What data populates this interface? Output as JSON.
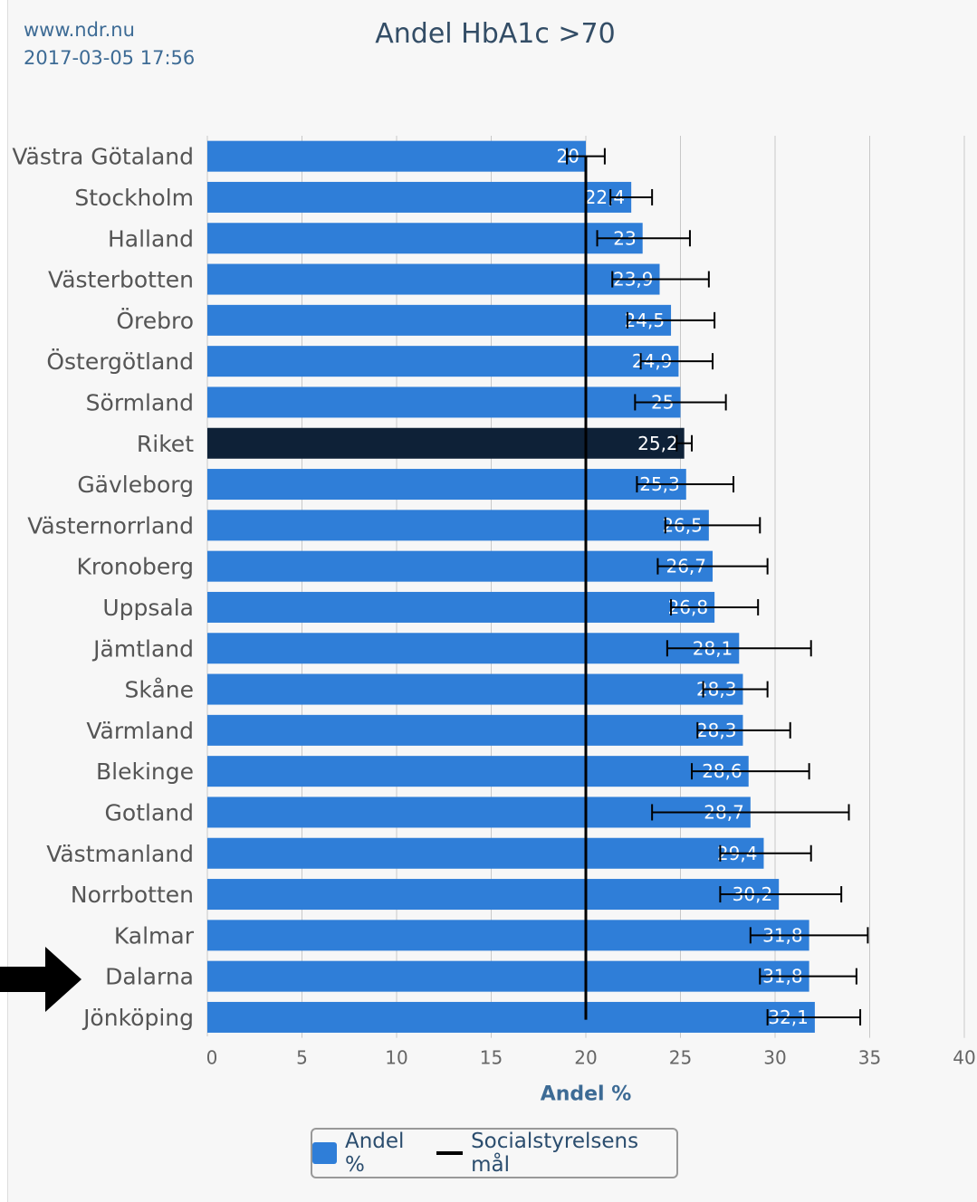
{
  "header": {
    "site": "www.ndr.nu",
    "datetime": "2017-03-05 17:56"
  },
  "colors": {
    "bar": "#2f7ed8",
    "highlight_bar": "#0e2137",
    "target_line": "#000000",
    "grid": "#c8c8c8"
  },
  "legend": {
    "items": [
      {
        "label": "Andel %",
        "icon": "blue-box"
      },
      {
        "label": "Socialstyrelsens mål",
        "icon": "black-line"
      }
    ]
  },
  "annotation": {
    "icon": "arrow-right-icon",
    "points_to": "Dalarna"
  },
  "chart_data": {
    "type": "bar",
    "orientation": "horizontal",
    "title": "Andel HbA1c >70",
    "xlabel": "Andel %",
    "ylabel": "",
    "xlim": [
      0,
      40
    ],
    "xticks": [
      "0",
      "5",
      "10",
      "15",
      "20",
      "25",
      "30",
      "35",
      "40"
    ],
    "grid": true,
    "legend_position": "bottom",
    "target": {
      "name": "Socialstyrelsens mål",
      "value": 20
    },
    "highlight": "Riket",
    "categories": [
      "Västra Götaland",
      "Stockholm",
      "Halland",
      "Västerbotten",
      "Örebro",
      "Östergötland",
      "Sörmland",
      "Riket",
      "Gävleborg",
      "Västernorrland",
      "Kronoberg",
      "Uppsala",
      "Jämtland",
      "Skåne",
      "Värmland",
      "Blekinge",
      "Gotland",
      "Västmanland",
      "Norrbotten",
      "Kalmar",
      "Dalarna",
      "Jönköping"
    ],
    "series": [
      {
        "name": "Andel %",
        "values": [
          20,
          22.4,
          23,
          23.9,
          24.5,
          24.9,
          25,
          25.2,
          25.3,
          26.5,
          26.7,
          26.8,
          28.1,
          28.3,
          28.3,
          28.6,
          28.7,
          29.4,
          30.2,
          31.8,
          31.8,
          32.1
        ],
        "labels": [
          "20",
          "22,4",
          "23",
          "23,9",
          "24,5",
          "24,9",
          "25",
          "25,2",
          "25,3",
          "26,5",
          "26,7",
          "26,8",
          "28,1",
          "28,3",
          "28,3",
          "28,6",
          "28,7",
          "29,4",
          "30,2",
          "31,8",
          "31,8",
          "32,1"
        ],
        "ci_low": [
          19.0,
          21.3,
          20.6,
          21.4,
          22.2,
          22.9,
          22.6,
          24.8,
          22.7,
          24.2,
          23.8,
          24.5,
          24.3,
          26.2,
          25.9,
          25.6,
          23.5,
          27.1,
          27.1,
          28.7,
          29.2,
          29.6
        ],
        "ci_high": [
          21.0,
          23.5,
          25.5,
          26.5,
          26.8,
          26.7,
          27.4,
          25.6,
          27.8,
          29.2,
          29.6,
          29.1,
          31.9,
          29.6,
          30.8,
          31.8,
          33.9,
          31.9,
          33.5,
          34.9,
          34.3,
          34.5
        ]
      }
    ]
  }
}
